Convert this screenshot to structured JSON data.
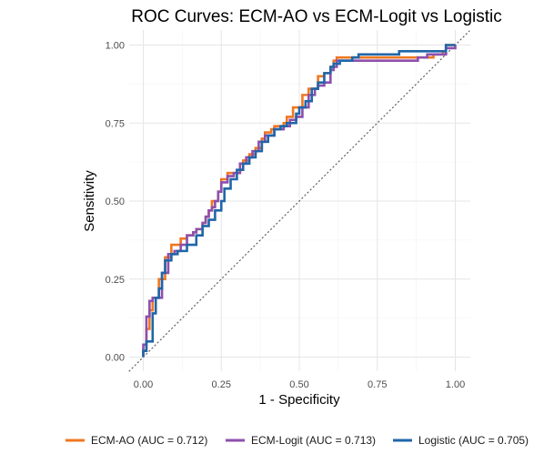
{
  "chart_data": {
    "type": "line",
    "title": "ROC Curves: ECM-AO vs ECM-Logit vs Logistic",
    "xlabel": "1 - Specificity",
    "ylabel": "Sensitivity",
    "xlim": [
      0,
      1
    ],
    "ylim": [
      0,
      1
    ],
    "x_ticks": [
      0,
      0.25,
      0.5,
      0.75,
      1
    ],
    "y_ticks": [
      0,
      0.25,
      0.5,
      0.75,
      1
    ],
    "x_tick_labels": [
      "0.00",
      "0.25",
      "0.50",
      "0.75",
      "1.00"
    ],
    "y_tick_labels": [
      "0.00",
      "0.25",
      "0.50",
      "0.75",
      "1.00"
    ],
    "grid": true,
    "legend_position": "bottom",
    "reference_line": {
      "from": [
        0,
        0
      ],
      "to": [
        1,
        1
      ],
      "style": "dotted",
      "color": "#555555"
    },
    "series": [
      {
        "name": "ECM-AO (AUC = 0.712)",
        "color": "#f07820",
        "x": [
          0,
          0,
          0.01,
          0.01,
          0.02,
          0.02,
          0.03,
          0.03,
          0.05,
          0.05,
          0.07,
          0.07,
          0.09,
          0.09,
          0.12,
          0.12,
          0.14,
          0.16,
          0.17,
          0.19,
          0.2,
          0.21,
          0.22,
          0.24,
          0.25,
          0.27,
          0.28,
          0.31,
          0.32,
          0.34,
          0.36,
          0.38,
          0.39,
          0.41,
          0.42,
          0.45,
          0.46,
          0.48,
          0.5,
          0.51,
          0.53,
          0.55,
          0.56,
          0.58,
          0.6,
          0.61,
          0.62,
          0.65,
          0.68,
          0.73,
          0.9,
          0.93,
          0.96,
          0.97,
          1.0
        ],
        "y": [
          0,
          0.02,
          0.02,
          0.09,
          0.09,
          0.15,
          0.15,
          0.19,
          0.19,
          0.25,
          0.25,
          0.32,
          0.32,
          0.36,
          0.36,
          0.38,
          0.39,
          0.4,
          0.41,
          0.43,
          0.45,
          0.47,
          0.5,
          0.53,
          0.57,
          0.59,
          0.59,
          0.6,
          0.63,
          0.65,
          0.67,
          0.7,
          0.72,
          0.73,
          0.74,
          0.75,
          0.77,
          0.8,
          0.8,
          0.84,
          0.86,
          0.86,
          0.9,
          0.91,
          0.93,
          0.95,
          0.96,
          0.96,
          0.96,
          0.96,
          0.96,
          0.97,
          0.98,
          1.0,
          1.0
        ]
      },
      {
        "name": "ECM-Logit (AUC = 0.713)",
        "color": "#8e4fad",
        "x": [
          0,
          0,
          0.01,
          0.01,
          0.02,
          0.02,
          0.03,
          0.03,
          0.06,
          0.06,
          0.08,
          0.08,
          0.1,
          0.12,
          0.14,
          0.16,
          0.17,
          0.19,
          0.2,
          0.21,
          0.22,
          0.23,
          0.24,
          0.25,
          0.27,
          0.29,
          0.31,
          0.33,
          0.35,
          0.37,
          0.39,
          0.42,
          0.45,
          0.47,
          0.49,
          0.51,
          0.53,
          0.55,
          0.56,
          0.58,
          0.6,
          0.61,
          0.62,
          0.66,
          0.7,
          0.75,
          0.86,
          0.88,
          0.91,
          0.96,
          0.97,
          1.0
        ],
        "y": [
          0,
          0.04,
          0.04,
          0.13,
          0.13,
          0.18,
          0.18,
          0.19,
          0.19,
          0.27,
          0.27,
          0.33,
          0.34,
          0.36,
          0.39,
          0.4,
          0.41,
          0.43,
          0.45,
          0.47,
          0.48,
          0.5,
          0.53,
          0.56,
          0.58,
          0.59,
          0.62,
          0.64,
          0.66,
          0.69,
          0.71,
          0.73,
          0.74,
          0.76,
          0.77,
          0.8,
          0.84,
          0.86,
          0.87,
          0.88,
          0.92,
          0.93,
          0.95,
          0.95,
          0.95,
          0.95,
          0.95,
          0.96,
          0.97,
          0.97,
          0.99,
          1.0
        ]
      },
      {
        "name": "Logistic (AUC = 0.705)",
        "color": "#2066a8",
        "x": [
          0,
          0,
          0.01,
          0.01,
          0.03,
          0.03,
          0.04,
          0.04,
          0.05,
          0.05,
          0.06,
          0.06,
          0.07,
          0.07,
          0.09,
          0.09,
          0.11,
          0.14,
          0.17,
          0.19,
          0.21,
          0.23,
          0.25,
          0.26,
          0.28,
          0.3,
          0.32,
          0.34,
          0.36,
          0.38,
          0.4,
          0.42,
          0.44,
          0.46,
          0.49,
          0.5,
          0.52,
          0.54,
          0.56,
          0.58,
          0.6,
          0.61,
          0.63,
          0.65,
          0.67,
          0.69,
          0.73,
          0.78,
          0.82,
          0.86,
          0.97,
          0.97,
          1.0
        ],
        "y": [
          0,
          0.02,
          0.02,
          0.05,
          0.05,
          0.14,
          0.14,
          0.19,
          0.19,
          0.22,
          0.22,
          0.27,
          0.27,
          0.31,
          0.31,
          0.33,
          0.34,
          0.36,
          0.39,
          0.42,
          0.44,
          0.47,
          0.5,
          0.54,
          0.57,
          0.6,
          0.62,
          0.64,
          0.66,
          0.69,
          0.71,
          0.73,
          0.74,
          0.75,
          0.78,
          0.8,
          0.82,
          0.86,
          0.88,
          0.91,
          0.93,
          0.94,
          0.95,
          0.95,
          0.96,
          0.97,
          0.97,
          0.97,
          0.98,
          0.98,
          0.98,
          1.0,
          1.0
        ]
      }
    ]
  }
}
